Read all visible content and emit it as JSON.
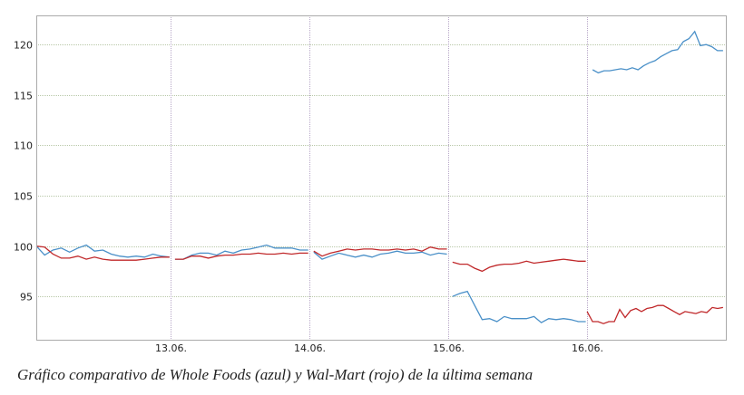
{
  "caption": "Gráfico comparativo de Whole Foods (azul) y Wal-Mart (rojo) de la última semana",
  "chart_data": {
    "type": "line",
    "title": "",
    "xlabel": "",
    "ylabel": "",
    "xlim": [
      12.03,
      17.0
    ],
    "ylim": [
      90.7,
      122.9
    ],
    "grid": true,
    "legend": "none",
    "y_ticks": [
      "95",
      "100",
      "105",
      "110",
      "115",
      "120"
    ],
    "x_ticks": [
      {
        "value": 13,
        "label": "13.06."
      },
      {
        "value": 14,
        "label": "14.06."
      },
      {
        "value": 15,
        "label": "15.06."
      },
      {
        "value": 16,
        "label": "16.06."
      }
    ],
    "series": [
      {
        "color": "#4a90c8",
        "segments": [
          {
            "start": 12.03,
            "end": 12.99,
            "values": [
              100,
              99.1,
              99.6,
              99.8,
              99.4,
              99.8,
              100.1,
              99.5,
              99.6,
              99.2,
              99.0,
              98.9,
              99.0,
              98.9,
              99.2,
              99.0,
              98.9
            ]
          },
          {
            "start": 13.03,
            "end": 13.99,
            "values": [
              98.7,
              98.7,
              99.1,
              99.3,
              99.3,
              99.1,
              99.5,
              99.3,
              99.6,
              99.7,
              99.9,
              100.1,
              99.8,
              99.8,
              99.8,
              99.6,
              99.6
            ]
          },
          {
            "start": 14.03,
            "end": 14.99,
            "values": [
              99.4,
              98.7,
              99.0,
              99.3,
              99.1,
              98.9,
              99.1,
              98.9,
              99.2,
              99.3,
              99.5,
              99.3,
              99.3,
              99.4,
              99.1,
              99.3,
              99.2
            ]
          },
          {
            "start": 15.03,
            "end": 15.99,
            "values": [
              95.0,
              95.3,
              95.5,
              94.1,
              92.7,
              92.8,
              92.5,
              93.0,
              92.8,
              92.8,
              92.8,
              93.0,
              92.4,
              92.8,
              92.7,
              92.8,
              92.7,
              92.5,
              92.5
            ]
          },
          {
            "start": 16.04,
            "end": 16.98,
            "values": [
              117.5,
              117.2,
              117.4,
              117.4,
              117.5,
              117.6,
              117.5,
              117.7,
              117.5,
              117.9,
              118.2,
              118.4,
              118.8,
              119.1,
              119.4,
              119.5,
              120.3,
              120.6,
              121.3,
              119.9,
              120.0,
              119.8,
              119.4,
              119.4
            ]
          }
        ]
      },
      {
        "color": "#c0282a",
        "segments": [
          {
            "start": 12.03,
            "end": 12.99,
            "values": [
              100,
              99.9,
              99.2,
              98.8,
              98.8,
              99.0,
              98.7,
              98.9,
              98.7,
              98.6,
              98.6,
              98.6,
              98.6,
              98.7,
              98.8,
              98.9,
              98.9
            ]
          },
          {
            "start": 13.03,
            "end": 13.99,
            "values": [
              98.7,
              98.7,
              99.0,
              99.0,
              98.8,
              99.0,
              99.1,
              99.1,
              99.2,
              99.2,
              99.3,
              99.2,
              99.2,
              99.3,
              99.2,
              99.3,
              99.3
            ]
          },
          {
            "start": 14.03,
            "end": 14.99,
            "values": [
              99.5,
              99.0,
              99.3,
              99.5,
              99.7,
              99.6,
              99.7,
              99.7,
              99.6,
              99.6,
              99.7,
              99.6,
              99.7,
              99.5,
              99.9,
              99.7,
              99.7
            ]
          },
          {
            "start": 15.03,
            "end": 15.99,
            "values": [
              98.4,
              98.2,
              98.2,
              97.8,
              97.5,
              97.9,
              98.1,
              98.2,
              98.2,
              98.3,
              98.5,
              98.3,
              98.4,
              98.5,
              98.6,
              98.7,
              98.6,
              98.5,
              98.5
            ]
          },
          {
            "start": 16.0,
            "end": 16.98,
            "values": [
              93.5,
              92.5,
              92.5,
              92.3,
              92.5,
              92.5,
              93.7,
              92.9,
              93.6,
              93.8,
              93.5,
              93.8,
              93.9,
              94.1,
              94.1,
              93.8,
              93.5,
              93.2,
              93.5,
              93.4,
              93.3,
              93.5,
              93.4,
              93.9,
              93.8,
              93.9
            ]
          }
        ]
      }
    ]
  }
}
